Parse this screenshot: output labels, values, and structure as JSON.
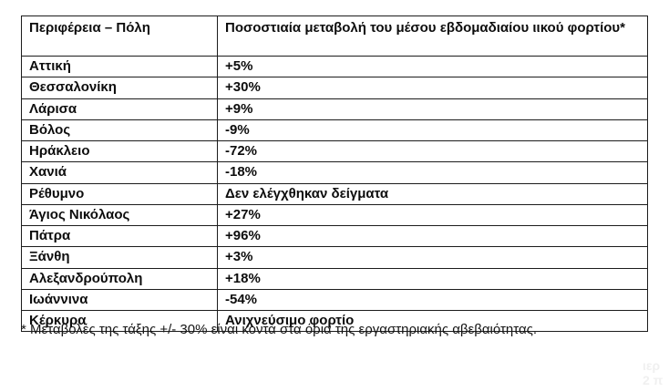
{
  "table": {
    "headers": {
      "region": "Περιφέρεια – Πόλη",
      "change": "Ποσοστιαία μεταβολή του μέσου εβδομαδιαίου ιικού φορτίου*"
    },
    "rows": [
      {
        "region": "Αττική",
        "change": "+5%"
      },
      {
        "region": "Θεσσαλονίκη",
        "change": "+30%"
      },
      {
        "region": "Λάρισα",
        "change": "+9%"
      },
      {
        "region": "Βόλος",
        "change": "-9%"
      },
      {
        "region": "Ηράκλειο",
        "change": "-72%"
      },
      {
        "region": "Χανιά",
        "change": "-18%"
      },
      {
        "region": "Ρέθυμνο",
        "change": "Δεν ελέγχθηκαν δείγματα"
      },
      {
        "region": "Άγιος Νικόλαος",
        "change": "+27%"
      },
      {
        "region": "Πάτρα",
        "change": "+96%"
      },
      {
        "region": "Ξάνθη",
        "change": "+3%"
      },
      {
        "region": "Αλεξανδρούπολη",
        "change": "+18%"
      },
      {
        "region": "Ιωάννινα",
        "change": "-54%"
      },
      {
        "region": "Κέρκυρα",
        "change": "Ανιχνεύσιμο φορτίο"
      }
    ]
  },
  "footnote": "* Μεταβολές της τάξης +/- 30% είναι κοντά στα όρια της εργαστηριακής αβεβαιότητας.",
  "watermark": {
    "line1": "ιερ",
    "line2": "2 π"
  },
  "colors": {
    "border": "#1c1c1c",
    "text": "#0d0d0d",
    "watermark": "#f0f0f0",
    "background": "#ffffff"
  }
}
